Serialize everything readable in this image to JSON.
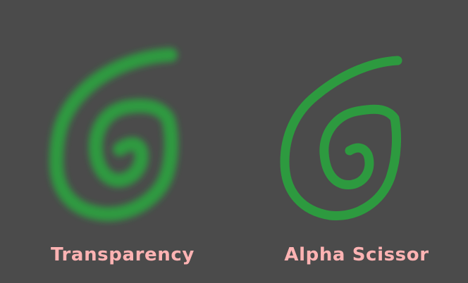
{
  "colors": {
    "background": "#4b4b4b",
    "spiral": "#2d9a3f",
    "label": "#ffb3b3"
  },
  "panels": [
    {
      "id": "transparency",
      "label": "Transparency",
      "icon": "spiral-icon",
      "blurred": true
    },
    {
      "id": "alpha-scissor",
      "label": "Alpha Scissor",
      "icon": "spiral-icon",
      "blurred": false
    }
  ]
}
